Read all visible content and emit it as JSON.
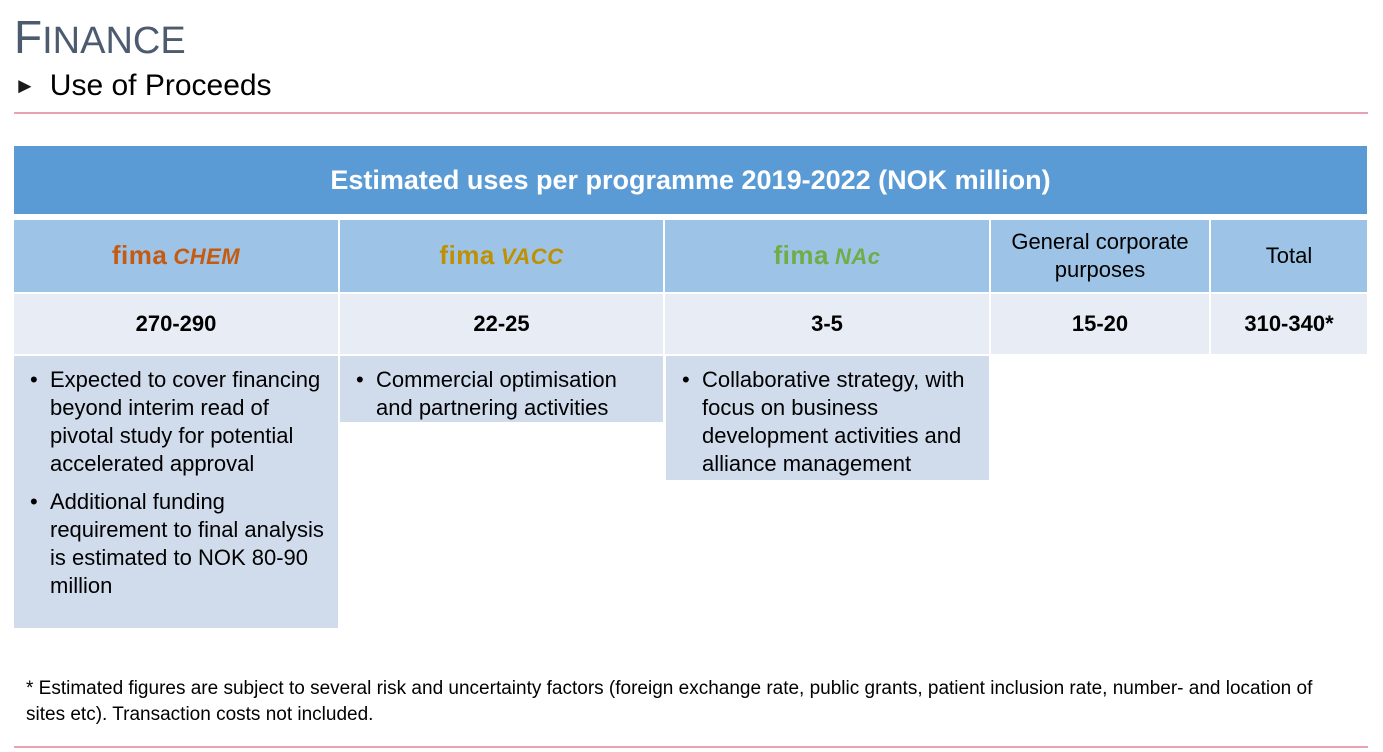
{
  "page": {
    "title_cap": "F",
    "title_rest": "INANCE",
    "subtitle_arrow": "►",
    "subtitle": "Use of Proceeds"
  },
  "table": {
    "header": "Estimated uses per programme 2019-2022 (NOK million)",
    "columns": [
      {
        "logo_a": "fima",
        "logo_b": "CHEM",
        "value": "270-290"
      },
      {
        "logo_a": "fima",
        "logo_b": "VACC",
        "value": "22-25"
      },
      {
        "logo_a": "fima",
        "logo_b": "NAc",
        "value": "3-5"
      },
      {
        "label": "General corporate purposes",
        "value": "15-20"
      },
      {
        "label": "Total",
        "value": "310-340*"
      }
    ],
    "descriptions": [
      {
        "bullets": [
          "Expected to cover financing beyond interim read of pivotal study for potential accelerated approval",
          "Additional funding requirement to final analysis is estimated to NOK 80-90 million"
        ]
      },
      {
        "bullets": [
          "Commercial optimisation and partnering activities"
        ]
      },
      {
        "bullets": [
          "Collaborative strategy, with focus on business development activities and alliance management"
        ]
      }
    ],
    "bullet_char": "•"
  },
  "footnote": "* Estimated figures are subject to several risk and uncertainty factors (foreign exchange rate, public grants, patient inclusion rate, number- and location of sites etc). Transaction costs not included.",
  "colors": {
    "header_bg": "#5b9bd5",
    "head_row_bg": "#9dc3e6",
    "value_row_bg": "#e8edf5",
    "desc_bg": "#d0dbec",
    "rule": "#e8a3b3",
    "fimachem": "#c55a11",
    "fimavacc": "#bf9000",
    "fimanac": "#70ad47"
  }
}
